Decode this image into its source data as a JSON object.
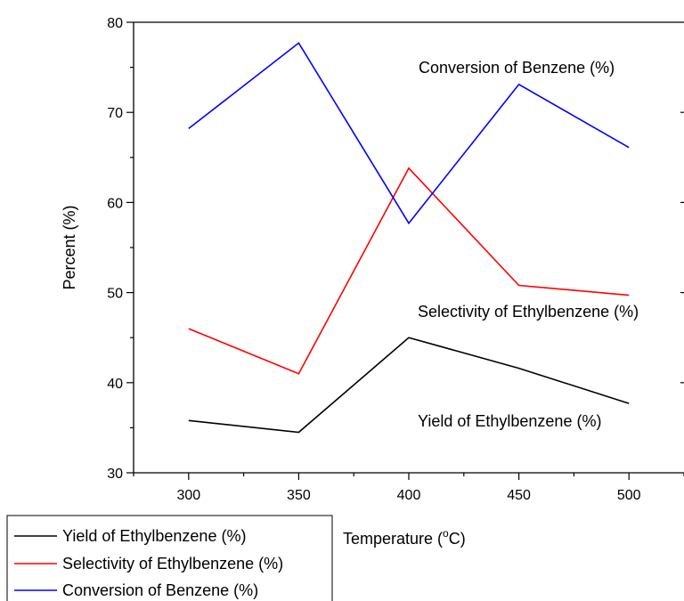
{
  "chart_data": {
    "type": "line",
    "xlabel_text": "Temperature (",
    "xlabel_sup": "o",
    "xlabel_unit": "C)",
    "ylabel": "Percent (%)",
    "x": [
      300,
      350,
      400,
      450,
      500
    ],
    "xticks": [
      "300",
      "350",
      "400",
      "450",
      "500"
    ],
    "yticks": [
      "30",
      "40",
      "50",
      "60",
      "70",
      "80"
    ],
    "xlim": [
      275,
      525
    ],
    "ylim": [
      30,
      80
    ],
    "grid": false,
    "legend_position": "bottom-left",
    "series": [
      {
        "name": "Yield of Ethylbenzene (%)",
        "color": "#000000",
        "values": [
          35.8,
          34.5,
          45.0,
          41.6,
          37.7
        ]
      },
      {
        "name": "Selectivity of Ethylbenzene (%)",
        "color": "#ff0000",
        "values": [
          46.0,
          41.0,
          63.8,
          50.8,
          49.7
        ]
      },
      {
        "name": "Conversion of Benzene (%)",
        "color": "#0000ff",
        "values": [
          68.2,
          77.7,
          57.7,
          73.1,
          66.1
        ]
      }
    ],
    "annotations": [
      {
        "text": "Conversion of Benzene (%)"
      },
      {
        "text": "Selectivity of Ethylbenzene (%)"
      },
      {
        "text": "Yield of Ethylbenzene (%)"
      }
    ]
  }
}
